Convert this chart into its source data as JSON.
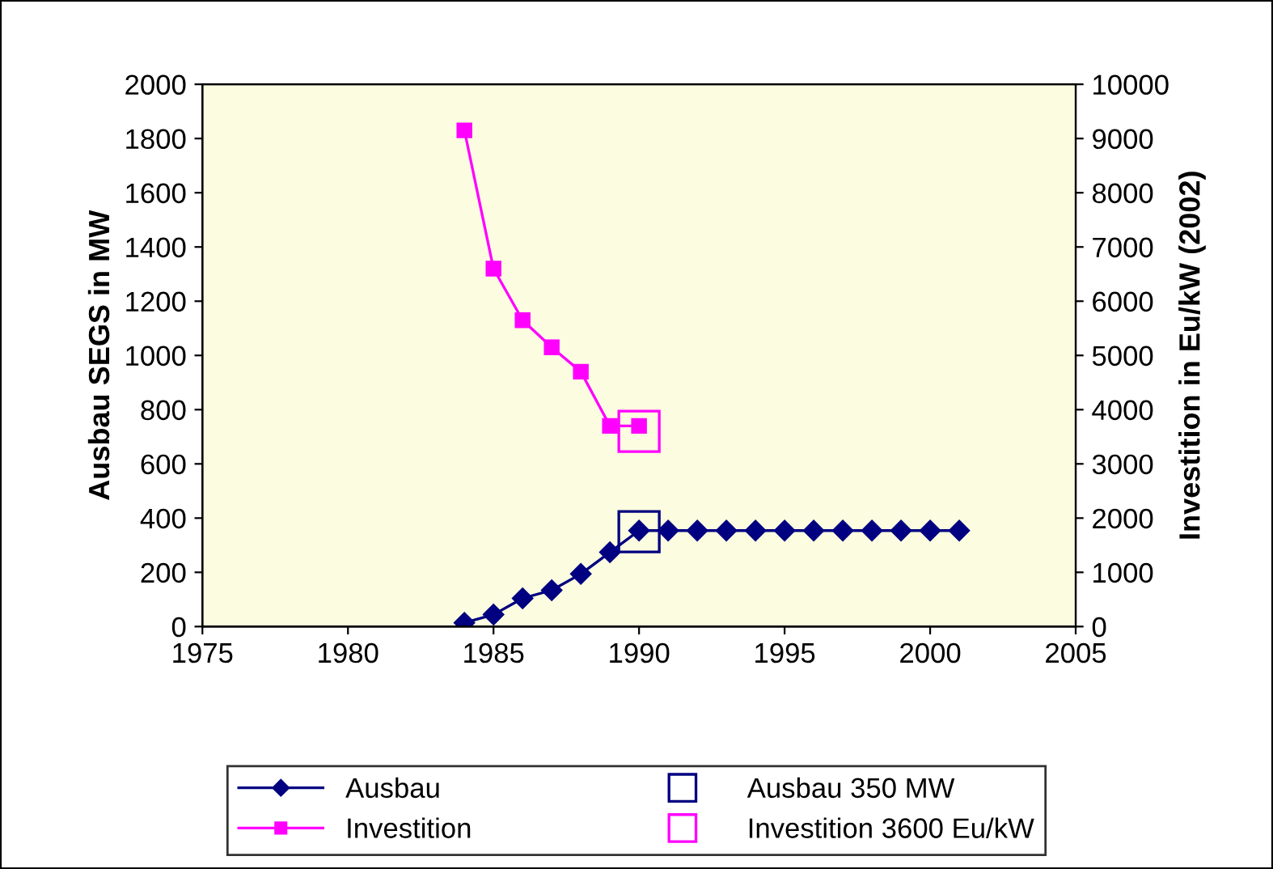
{
  "chart_data": {
    "type": "line",
    "ylabel": "Ausbau SEGS in MW",
    "y2label": "Investition in Eu/kW (2002)",
    "xlim": [
      1975,
      2005
    ],
    "xticks": [
      1975,
      1980,
      1985,
      1990,
      1995,
      2000,
      2005
    ],
    "ylim": [
      0,
      2000
    ],
    "yticks": [
      0,
      200,
      400,
      600,
      800,
      1000,
      1200,
      1400,
      1600,
      1800,
      2000
    ],
    "y2lim": [
      0,
      10000
    ],
    "y2ticks": [
      0,
      1000,
      2000,
      3000,
      4000,
      5000,
      6000,
      7000,
      8000,
      9000,
      10000
    ],
    "grid": false,
    "legend": "bottom",
    "series": [
      {
        "name": "Ausbau",
        "color": "#000080",
        "marker": "diamond",
        "x": [
          1984,
          1985,
          1986,
          1987,
          1988,
          1989,
          1990,
          1991,
          1992,
          1993,
          1994,
          1995,
          1996,
          1997,
          1998,
          1999,
          2000,
          2001
        ],
        "values": [
          14,
          44,
          104,
          134,
          194,
          274,
          354,
          354,
          354,
          354,
          354,
          354,
          354,
          354,
          354,
          354,
          354,
          354
        ]
      },
      {
        "name": "Investition",
        "axis": "y2",
        "color": "#ff00ff",
        "marker": "square",
        "x": [
          1984,
          1985,
          1986,
          1987,
          1988,
          1989,
          1990
        ],
        "values": [
          9150,
          6600,
          5650,
          5150,
          4700,
          3700,
          3700
        ]
      },
      {
        "name": "Ausbau 350 MW",
        "type": "scatter",
        "color": "#000080",
        "marker": "square",
        "x": [
          1990
        ],
        "values": [
          350
        ]
      },
      {
        "name": "Investition 3600 Eu/kW",
        "type": "scatter",
        "axis": "y2",
        "color": "#ff00ff",
        "marker": "square",
        "x": [
          1990
        ],
        "values": [
          3600
        ]
      }
    ]
  }
}
